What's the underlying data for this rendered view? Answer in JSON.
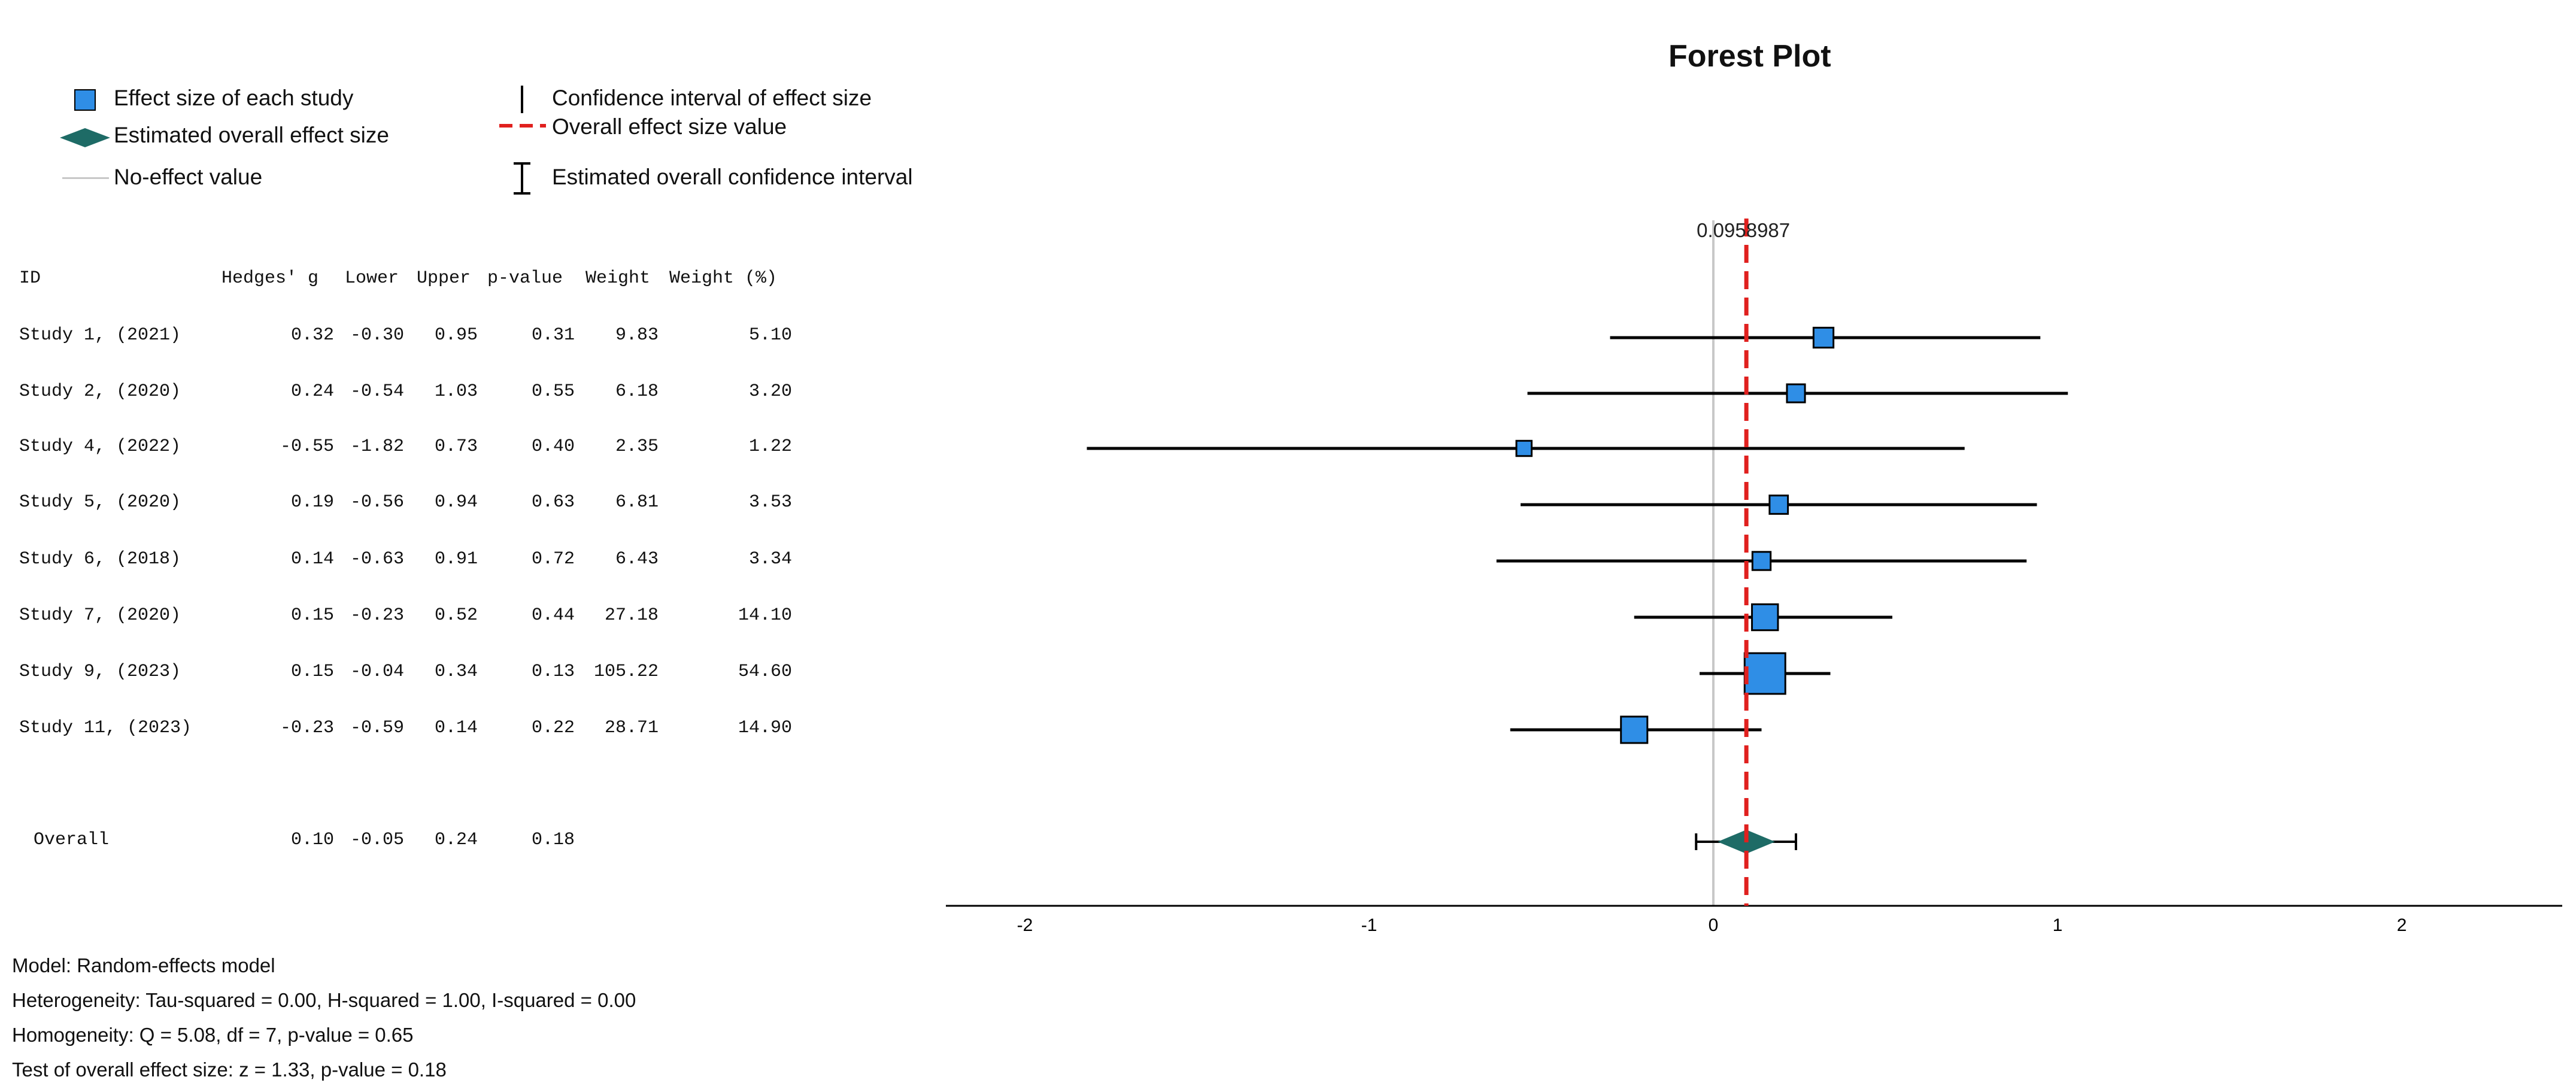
{
  "legend": {
    "effect_size": "Effect size of each study",
    "overall_effect": "Estimated overall effect size",
    "no_effect": "No-effect value",
    "ci": "Confidence interval of effect size",
    "overall_value": "Overall effect size value",
    "overall_ci": "Estimated overall confidence interval"
  },
  "table": {
    "headers": [
      "ID",
      "Hedges' g",
      "Lower",
      "Upper",
      "p-value",
      "Weight",
      "Weight (%)"
    ]
  },
  "chart_data": {
    "type": "forest",
    "title": "Forest Plot",
    "overall_label": "0.0958987",
    "xlim": [
      -2.2,
      2.5
    ],
    "ticks": [
      "-2",
      "-1",
      "0",
      "1",
      "2"
    ],
    "tick_values": [
      -2,
      -1,
      0,
      1,
      2
    ],
    "no_effect": 0,
    "studies": [
      {
        "id": "Study 1, (2021)",
        "g": 0.32,
        "lower": -0.3,
        "upper": 0.95,
        "p": 0.31,
        "weight": 9.83,
        "weight_pct": 5.1,
        "g_text": "0.32",
        "lower_text": "-0.30",
        "upper_text": "0.95",
        "p_text": "0.31",
        "weight_text": "9.83",
        "weight_pct_text": "5.10"
      },
      {
        "id": "Study 2, (2020)",
        "g": 0.24,
        "lower": -0.54,
        "upper": 1.03,
        "p": 0.55,
        "weight": 6.18,
        "weight_pct": 3.2,
        "g_text": "0.24",
        "lower_text": "-0.54",
        "upper_text": "1.03",
        "p_text": "0.55",
        "weight_text": "6.18",
        "weight_pct_text": "3.20"
      },
      {
        "id": "Study 4, (2022)",
        "g": -0.55,
        "lower": -1.82,
        "upper": 0.73,
        "p": 0.4,
        "weight": 2.35,
        "weight_pct": 1.22,
        "g_text": "-0.55",
        "lower_text": "-1.82",
        "upper_text": "0.73",
        "p_text": "0.40",
        "weight_text": "2.35",
        "weight_pct_text": "1.22"
      },
      {
        "id": "Study 5, (2020)",
        "g": 0.19,
        "lower": -0.56,
        "upper": 0.94,
        "p": 0.63,
        "weight": 6.81,
        "weight_pct": 3.53,
        "g_text": "0.19",
        "lower_text": "-0.56",
        "upper_text": "0.94",
        "p_text": "0.63",
        "weight_text": "6.81",
        "weight_pct_text": "3.53"
      },
      {
        "id": "Study 6, (2018)",
        "g": 0.14,
        "lower": -0.63,
        "upper": 0.91,
        "p": 0.72,
        "weight": 6.43,
        "weight_pct": 3.34,
        "g_text": "0.14",
        "lower_text": "-0.63",
        "upper_text": "0.91",
        "p_text": "0.72",
        "weight_text": "6.43",
        "weight_pct_text": "3.34"
      },
      {
        "id": "Study 7, (2020)",
        "g": 0.15,
        "lower": -0.23,
        "upper": 0.52,
        "p": 0.44,
        "weight": 27.18,
        "weight_pct": 14.1,
        "g_text": "0.15",
        "lower_text": "-0.23",
        "upper_text": "0.52",
        "p_text": "0.44",
        "weight_text": "27.18",
        "weight_pct_text": "14.10"
      },
      {
        "id": "Study 9, (2023)",
        "g": 0.15,
        "lower": -0.04,
        "upper": 0.34,
        "p": 0.13,
        "weight": 105.22,
        "weight_pct": 54.6,
        "g_text": "0.15",
        "lower_text": "-0.04",
        "upper_text": "0.34",
        "p_text": "0.13",
        "weight_text": "105.22",
        "weight_pct_text": "54.60"
      },
      {
        "id": "Study 11, (2023)",
        "g": -0.23,
        "lower": -0.59,
        "upper": 0.14,
        "p": 0.22,
        "weight": 28.71,
        "weight_pct": 14.9,
        "g_text": "-0.23",
        "lower_text": "-0.59",
        "upper_text": "0.14",
        "p_text": "0.22",
        "weight_text": "28.71",
        "weight_pct_text": "14.90"
      }
    ],
    "overall": {
      "label": "Overall",
      "g": 0.0958987,
      "lower": -0.05,
      "upper": 0.24,
      "p": 0.18,
      "g_text": "0.10",
      "lower_text": "-0.05",
      "upper_text": "0.24",
      "p_text": "0.18"
    }
  },
  "colors": {
    "square_fill": "#2f8ee6",
    "diamond_fill": "#1e6b66",
    "overall_line": "#e0201e",
    "no_effect_line": "#c8c8c8",
    "ci_line": "#000000"
  },
  "footer": {
    "model": "Model: Random-effects model",
    "heterogeneity": "Heterogeneity: Tau-squared = 0.00, H-squared = 1.00, I-squared = 0.00",
    "homogeneity": "Homogeneity: Q = 5.08, df = 7, p-value = 0.65",
    "test": "Test of overall effect size: z = 1.33, p-value = 0.18"
  }
}
